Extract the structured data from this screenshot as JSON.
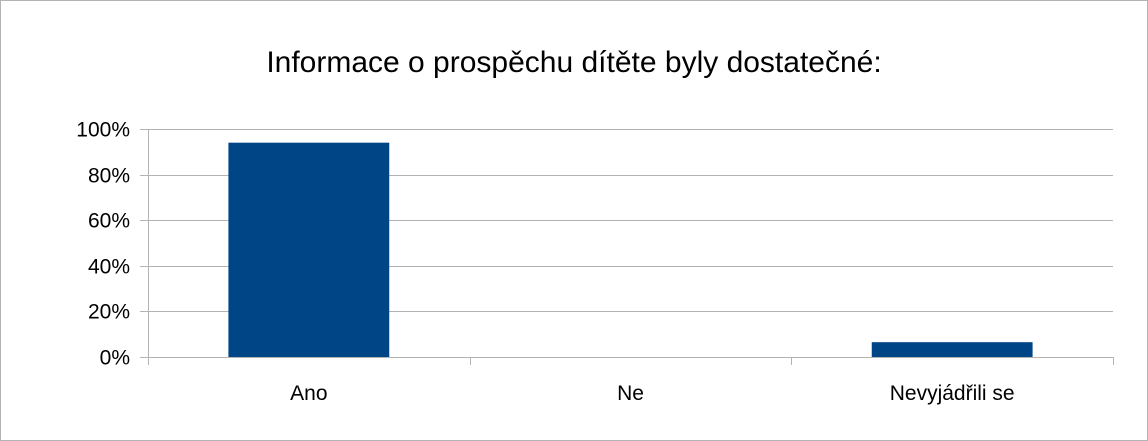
{
  "chart_data": {
    "type": "bar",
    "title": "Informace o prospěchu dítěte byly dostatečné:",
    "xlabel": "",
    "ylabel": "",
    "categories": [
      "Ano",
      "Ne",
      "Nevyjádřili se"
    ],
    "values": [
      94,
      0,
      6.5
    ],
    "ylim": [
      0,
      100
    ],
    "yticks": [
      0,
      20,
      40,
      60,
      80,
      100
    ],
    "ytick_labels": [
      "0%",
      "20%",
      "40%",
      "60%",
      "80%",
      "100%"
    ],
    "grid": true,
    "legend": "none",
    "bar_color": "#004586",
    "grid_color": "#b3b3b3",
    "axis_color": "#b3b3b3"
  }
}
